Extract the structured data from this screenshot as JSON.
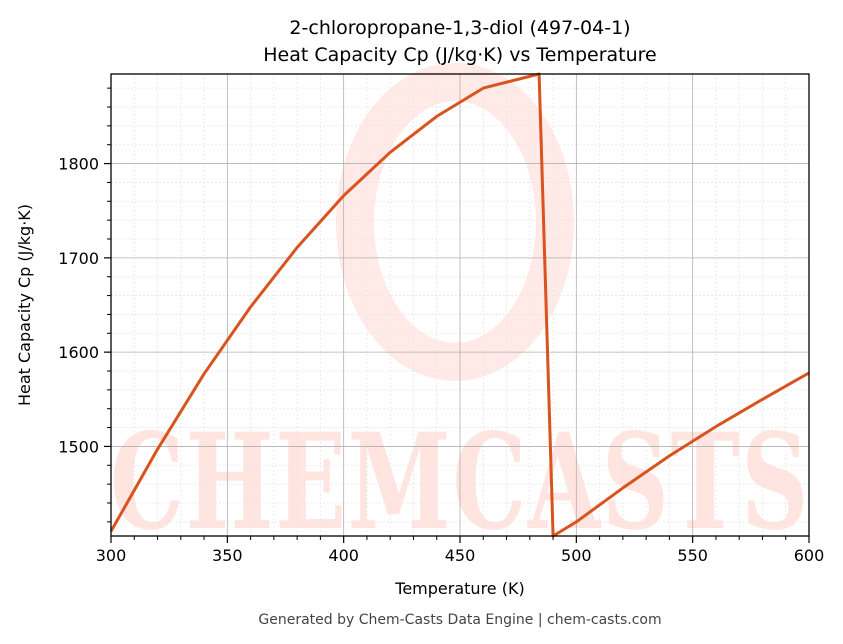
{
  "chart_data": {
    "type": "line",
    "title": "2-chloropropane-1,3-diol (497-04-1)",
    "subtitle": "Heat Capacity Cp (J/kg·K) vs Temperature",
    "xlabel": "Temperature (K)",
    "ylabel": "Heat Capacity Cp (J/kg·K)",
    "xlim": [
      300,
      600
    ],
    "ylim": [
      1405,
      1895
    ],
    "xticks": [
      300,
      350,
      400,
      450,
      500,
      550,
      600
    ],
    "yticks": [
      1500,
      1600,
      1700,
      1800
    ],
    "grid": true,
    "legend": "none",
    "series": [
      {
        "color": "#d9531e",
        "x": [
          300,
          320,
          340,
          360,
          380,
          400,
          420,
          440,
          460,
          484,
          490,
          500,
          520,
          540,
          560,
          580,
          600
        ],
        "y": [
          1410,
          1497,
          1577,
          1648,
          1711,
          1766,
          1812,
          1850,
          1880,
          1895,
          1405,
          1420,
          1456,
          1490,
          1521,
          1550,
          1578
        ]
      }
    ]
  },
  "footer": "Generated by Chem-Casts Data Engine | chem-casts.com",
  "watermark": "CHEMCASTS",
  "colors": {
    "line": "#d9531e",
    "watermark": "#ff8a78",
    "grid_major": "#b0b0b0",
    "grid_minor": "#e6e6e6"
  }
}
